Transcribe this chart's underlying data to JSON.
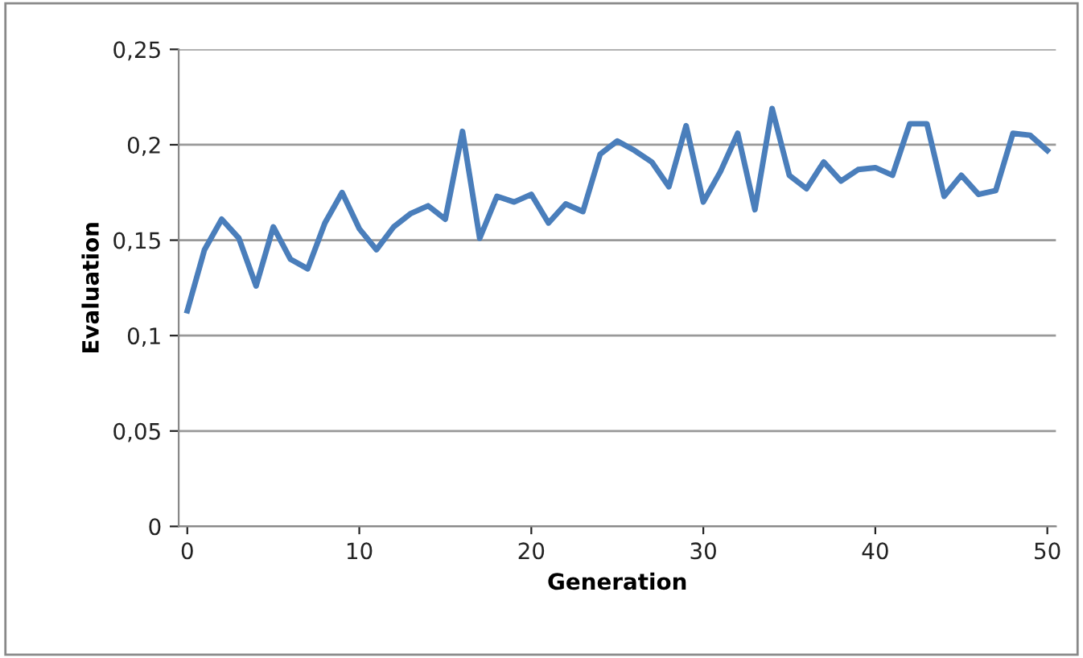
{
  "chart_data": {
    "type": "line",
    "xlabel": "Generation",
    "ylabel": "Evaluation",
    "x": [
      0,
      1,
      2,
      3,
      4,
      5,
      6,
      7,
      8,
      9,
      10,
      11,
      12,
      13,
      14,
      15,
      16,
      17,
      18,
      19,
      20,
      21,
      22,
      23,
      24,
      25,
      26,
      27,
      28,
      29,
      30,
      31,
      32,
      33,
      34,
      35,
      36,
      37,
      38,
      39,
      40,
      41,
      42,
      43,
      44,
      45,
      46,
      47,
      48,
      49,
      50
    ],
    "series": [
      {
        "color": "#4a7ebb",
        "values": [
          0.113,
          0.145,
          0.161,
          0.151,
          0.126,
          0.157,
          0.14,
          0.135,
          0.159,
          0.175,
          0.156,
          0.145,
          0.157,
          0.164,
          0.168,
          0.161,
          0.207,
          0.151,
          0.173,
          0.17,
          0.174,
          0.159,
          0.169,
          0.165,
          0.195,
          0.202,
          0.197,
          0.191,
          0.178,
          0.21,
          0.17,
          0.186,
          0.206,
          0.166,
          0.219,
          0.184,
          0.177,
          0.191,
          0.181,
          0.187,
          0.188,
          0.184,
          0.211,
          0.211,
          0.173,
          0.184,
          0.174,
          0.176,
          0.206,
          0.205,
          0.197
        ]
      }
    ],
    "xlim": [
      -0.5,
      50.5
    ],
    "xticks": [
      0,
      10,
      20,
      30,
      40,
      50
    ],
    "ylim": [
      0,
      0.25
    ],
    "yticks": [
      0,
      {
        "value": 0.05,
        "label": "0,05"
      },
      {
        "value": 0.1,
        "label": "0,1"
      },
      {
        "value": 0.15,
        "label": "0,15"
      },
      {
        "value": 0.2,
        "label": "0,2"
      },
      {
        "value": 0.25,
        "label": "0,25"
      }
    ],
    "grid": "y",
    "marker": "none",
    "line_style": "solid"
  }
}
